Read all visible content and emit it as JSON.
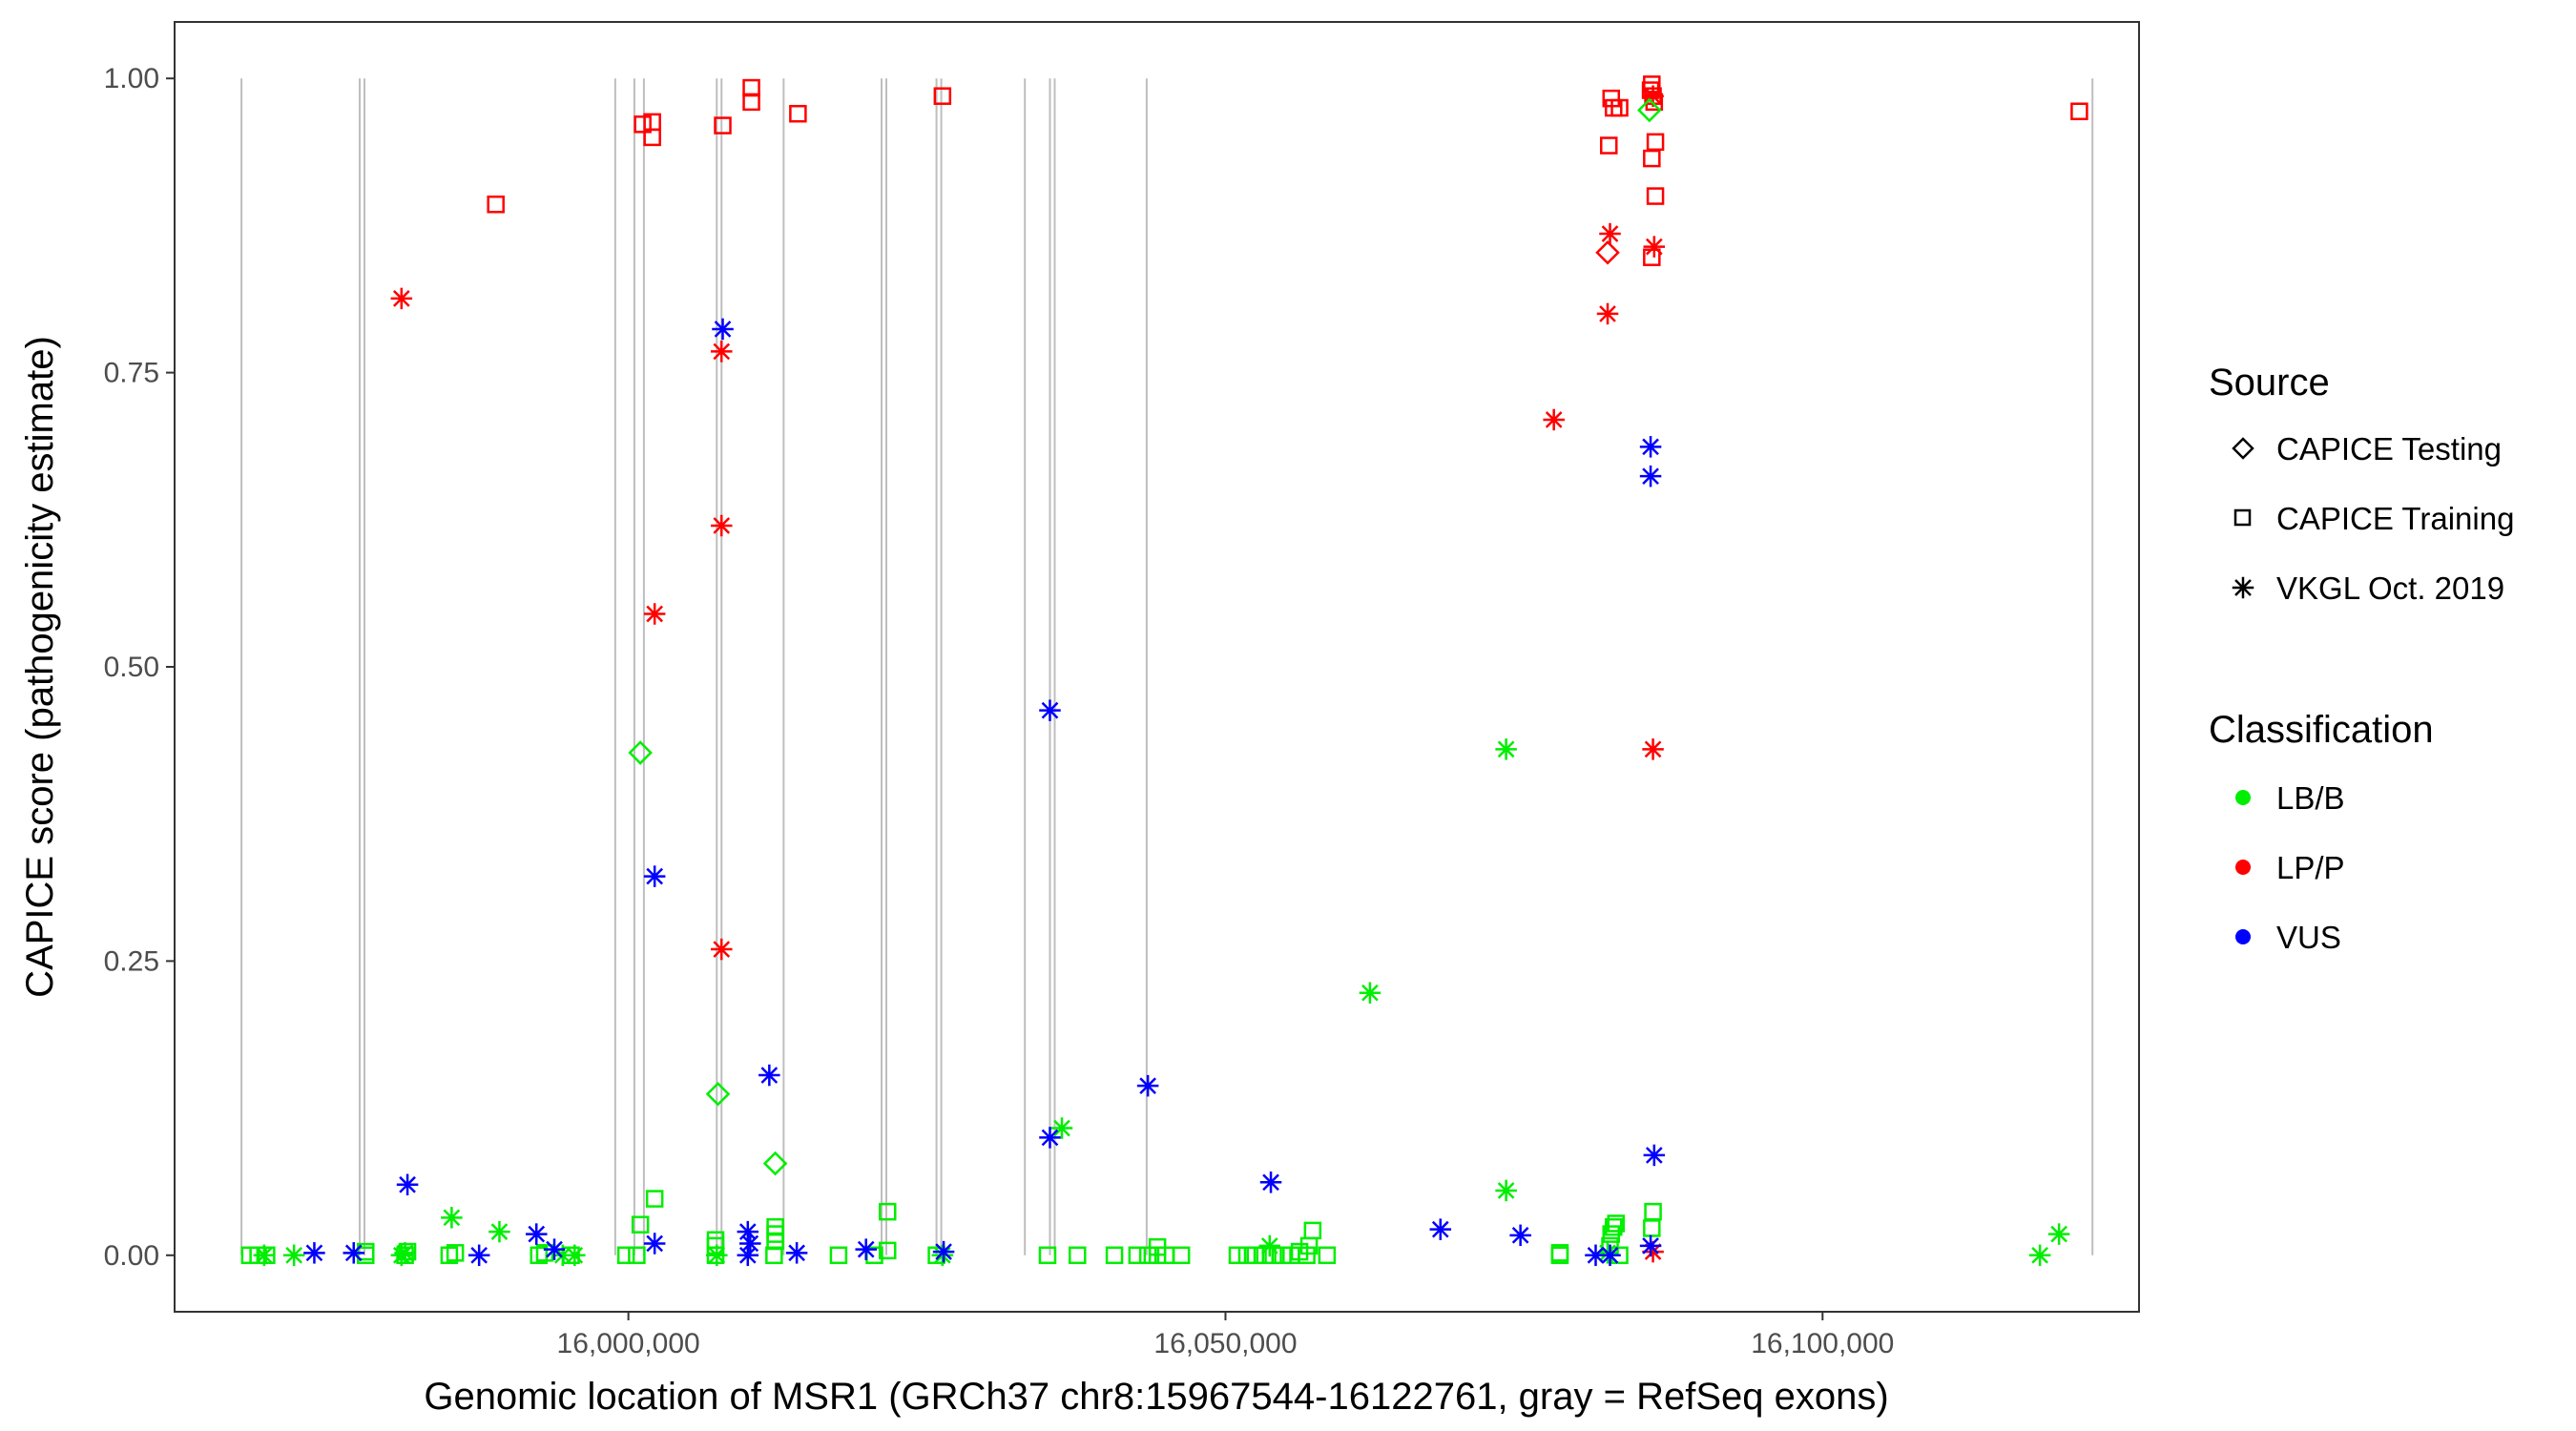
{
  "chart_data": {
    "type": "scatter",
    "xlabel": "Genomic location of MSR1 (GRCh37 chr8:15967544-16122761, gray = RefSeq exons)",
    "ylabel": "CAPICE score (pathogenicity estimate)",
    "xlim": [
      15962000,
      16126500
    ],
    "ylim": [
      -0.048,
      1.048
    ],
    "x_ticks": [
      16000000,
      16050000,
      16100000
    ],
    "x_tick_labels": [
      "16,000,000",
      "16,050,000",
      "16,100,000"
    ],
    "y_ticks": [
      0,
      0.25,
      0.5,
      0.75,
      1.0
    ],
    "y_tick_labels": [
      "0.00",
      "0.25",
      "0.50",
      "0.75",
      "1.00"
    ],
    "grid": false,
    "exon_lines": {
      "color": "#bebebe",
      "y_range": [
        0,
        1.0
      ],
      "positions": [
        15967600,
        15977500,
        15977900,
        15998900,
        16000500,
        16001300,
        16007400,
        16007800,
        16013000,
        16021200,
        16021600,
        16025800,
        16026200,
        16033200,
        16035300,
        16035700,
        16043400,
        16122600
      ]
    },
    "legend": {
      "placement": "right",
      "source_title": "Source",
      "source_entries": [
        {
          "label": "CAPICE Testing",
          "shape": "diamond"
        },
        {
          "label": "CAPICE Training",
          "shape": "square"
        },
        {
          "label": "VKGL Oct. 2019",
          "shape": "asterisk"
        }
      ],
      "class_title": "Classification",
      "class_entries": [
        {
          "label": "LB/B",
          "color": "#00ee00"
        },
        {
          "label": "LP/P",
          "color": "#ff0000"
        },
        {
          "label": "VUS",
          "color": "#0000ff"
        }
      ]
    },
    "series": [
      {
        "name": "CAPICE Testing",
        "shape": "diamond",
        "points": [
          {
            "x": 16001000,
            "y": 0.427,
            "c": "LB/B"
          },
          {
            "x": 16007500,
            "y": 0.137,
            "c": "LB/B"
          },
          {
            "x": 16012300,
            "y": 0.078,
            "c": "LB/B"
          },
          {
            "x": 16082000,
            "y": 0.852,
            "c": "LP/P"
          },
          {
            "x": 16085500,
            "y": 0.973,
            "c": "LB/B"
          }
        ]
      },
      {
        "name": "CAPICE Training",
        "shape": "square",
        "points": [
          {
            "x": 15968300,
            "y": 0.0,
            "c": "LB/B"
          },
          {
            "x": 15969000,
            "y": 0.0,
            "c": "LB/B"
          },
          {
            "x": 15969700,
            "y": 0.0,
            "c": "LB/B"
          },
          {
            "x": 15978000,
            "y": 0.0,
            "c": "LB/B"
          },
          {
            "x": 15978000,
            "y": 0.003,
            "c": "LB/B"
          },
          {
            "x": 15981300,
            "y": 0.0,
            "c": "LB/B"
          },
          {
            "x": 15981500,
            "y": 0.003,
            "c": "LB/B"
          },
          {
            "x": 15985000,
            "y": 0.0,
            "c": "LB/B"
          },
          {
            "x": 15985500,
            "y": 0.002,
            "c": "LB/B"
          },
          {
            "x": 15992500,
            "y": 0.0,
            "c": "LB/B"
          },
          {
            "x": 15993000,
            "y": 0.002,
            "c": "LB/B"
          },
          {
            "x": 15995200,
            "y": 0.0,
            "c": "LB/B"
          },
          {
            "x": 15999800,
            "y": 0.0,
            "c": "LB/B"
          },
          {
            "x": 16000700,
            "y": 0.0,
            "c": "LB/B"
          },
          {
            "x": 16001000,
            "y": 0.026,
            "c": "LB/B"
          },
          {
            "x": 16002200,
            "y": 0.048,
            "c": "LB/B"
          },
          {
            "x": 16007300,
            "y": 0.0,
            "c": "LB/B"
          },
          {
            "x": 16007300,
            "y": 0.008,
            "c": "LB/B"
          },
          {
            "x": 16007300,
            "y": 0.013,
            "c": "LB/B"
          },
          {
            "x": 16012200,
            "y": 0.0,
            "c": "LB/B"
          },
          {
            "x": 16012300,
            "y": 0.012,
            "c": "LB/B"
          },
          {
            "x": 16012300,
            "y": 0.018,
            "c": "LB/B"
          },
          {
            "x": 16012300,
            "y": 0.024,
            "c": "LB/B"
          },
          {
            "x": 16017600,
            "y": 0.0,
            "c": "LB/B"
          },
          {
            "x": 16020600,
            "y": 0.0,
            "c": "LB/B"
          },
          {
            "x": 16021700,
            "y": 0.004,
            "c": "LB/B"
          },
          {
            "x": 16021700,
            "y": 0.037,
            "c": "LB/B"
          },
          {
            "x": 16025800,
            "y": 0.0,
            "c": "LB/B"
          },
          {
            "x": 16035100,
            "y": 0.0,
            "c": "LB/B"
          },
          {
            "x": 16037600,
            "y": 0.0,
            "c": "LB/B"
          },
          {
            "x": 16040700,
            "y": 0.0,
            "c": "LB/B"
          },
          {
            "x": 16042600,
            "y": 0.0,
            "c": "LB/B"
          },
          {
            "x": 16043500,
            "y": 0.0,
            "c": "LB/B"
          },
          {
            "x": 16044300,
            "y": 0.0,
            "c": "LB/B"
          },
          {
            "x": 16044300,
            "y": 0.007,
            "c": "LB/B"
          },
          {
            "x": 16045000,
            "y": 0.0,
            "c": "LB/B"
          },
          {
            "x": 16046300,
            "y": 0.0,
            "c": "LB/B"
          },
          {
            "x": 16051000,
            "y": 0.0,
            "c": "LB/B"
          },
          {
            "x": 16051800,
            "y": 0.0,
            "c": "LB/B"
          },
          {
            "x": 16052500,
            "y": 0.0,
            "c": "LB/B"
          },
          {
            "x": 16053300,
            "y": 0.0,
            "c": "LB/B"
          },
          {
            "x": 16054000,
            "y": 0.0,
            "c": "LB/B"
          },
          {
            "x": 16054800,
            "y": 0.0,
            "c": "LB/B"
          },
          {
            "x": 16055500,
            "y": 0.0,
            "c": "LB/B"
          },
          {
            "x": 16056200,
            "y": 0.003,
            "c": "LB/B"
          },
          {
            "x": 16056800,
            "y": 0.0,
            "c": "LB/B"
          },
          {
            "x": 16057000,
            "y": 0.008,
            "c": "LB/B"
          },
          {
            "x": 16057300,
            "y": 0.021,
            "c": "LB/B"
          },
          {
            "x": 16058500,
            "y": 0.0,
            "c": "LB/B"
          },
          {
            "x": 16078000,
            "y": 0.0,
            "c": "LB/B"
          },
          {
            "x": 16078000,
            "y": 0.002,
            "c": "LB/B"
          },
          {
            "x": 16082200,
            "y": 0.008,
            "c": "LB/B"
          },
          {
            "x": 16082300,
            "y": 0.018,
            "c": "LB/B"
          },
          {
            "x": 16082500,
            "y": 0.024,
            "c": "LB/B"
          },
          {
            "x": 16082700,
            "y": 0.027,
            "c": "LB/B"
          },
          {
            "x": 16083000,
            "y": 0.0,
            "c": "LB/B"
          },
          {
            "x": 16085700,
            "y": 0.023,
            "c": "LB/B"
          },
          {
            "x": 16085800,
            "y": 0.037,
            "c": "LB/B"
          },
          {
            "x": 16007900,
            "y": 0.96,
            "c": "LP/P"
          },
          {
            "x": 16010300,
            "y": 0.992,
            "c": "LP/P"
          },
          {
            "x": 16010300,
            "y": 0.98,
            "c": "LP/P"
          },
          {
            "x": 16014200,
            "y": 0.97,
            "c": "LP/P"
          },
          {
            "x": 16001200,
            "y": 0.961,
            "c": "LP/P"
          },
          {
            "x": 16002000,
            "y": 0.963,
            "c": "LP/P"
          },
          {
            "x": 16002000,
            "y": 0.95,
            "c": "LP/P"
          },
          {
            "x": 15988900,
            "y": 0.893,
            "c": "LP/P"
          },
          {
            "x": 16026300,
            "y": 0.985,
            "c": "LP/P"
          },
          {
            "x": 16082100,
            "y": 0.943,
            "c": "LP/P"
          },
          {
            "x": 16082300,
            "y": 0.983,
            "c": "LP/P"
          },
          {
            "x": 16082500,
            "y": 0.975,
            "c": "LP/P"
          },
          {
            "x": 16083000,
            "y": 0.975,
            "c": "LP/P"
          },
          {
            "x": 16085600,
            "y": 0.99,
            "c": "LP/P"
          },
          {
            "x": 16085700,
            "y": 0.995,
            "c": "LP/P"
          },
          {
            "x": 16085800,
            "y": 0.985,
            "c": "LP/P"
          },
          {
            "x": 16085900,
            "y": 0.98,
            "c": "LP/P"
          },
          {
            "x": 16085700,
            "y": 0.932,
            "c": "LP/P"
          },
          {
            "x": 16086000,
            "y": 0.946,
            "c": "LP/P"
          },
          {
            "x": 16086000,
            "y": 0.9,
            "c": "LP/P"
          },
          {
            "x": 16085700,
            "y": 0.848,
            "c": "LP/P"
          },
          {
            "x": 16121500,
            "y": 0.972,
            "c": "LP/P"
          }
        ]
      },
      {
        "name": "VKGL Oct. 2019",
        "shape": "asterisk",
        "points": [
          {
            "x": 15969500,
            "y": 0.0,
            "c": "LB/B"
          },
          {
            "x": 15972000,
            "y": 0.0,
            "c": "LB/B"
          },
          {
            "x": 15981000,
            "y": 0.0,
            "c": "LB/B"
          },
          {
            "x": 15981300,
            "y": 0.002,
            "c": "LB/B"
          },
          {
            "x": 15985200,
            "y": 0.032,
            "c": "LB/B"
          },
          {
            "x": 15989200,
            "y": 0.02,
            "c": "LB/B"
          },
          {
            "x": 15994500,
            "y": 0.0,
            "c": "LB/B"
          },
          {
            "x": 15995500,
            "y": 0.0,
            "c": "LB/B"
          },
          {
            "x": 16007400,
            "y": 0.0,
            "c": "LB/B"
          },
          {
            "x": 16026300,
            "y": 0.0,
            "c": "LB/B"
          },
          {
            "x": 16036300,
            "y": 0.108,
            "c": "LB/B"
          },
          {
            "x": 16053700,
            "y": 0.008,
            "c": "LB/B"
          },
          {
            "x": 16062100,
            "y": 0.223,
            "c": "LB/B"
          },
          {
            "x": 16073500,
            "y": 0.43,
            "c": "LB/B"
          },
          {
            "x": 16073500,
            "y": 0.055,
            "c": "LB/B"
          },
          {
            "x": 16082000,
            "y": 0.002,
            "c": "LB/B"
          },
          {
            "x": 16118200,
            "y": 0.0,
            "c": "LB/B"
          },
          {
            "x": 16119800,
            "y": 0.018,
            "c": "LB/B"
          },
          {
            "x": 15981000,
            "y": 0.813,
            "c": "LP/P"
          },
          {
            "x": 16002200,
            "y": 0.545,
            "c": "LP/P"
          },
          {
            "x": 16007800,
            "y": 0.768,
            "c": "LP/P"
          },
          {
            "x": 16007800,
            "y": 0.62,
            "c": "LP/P"
          },
          {
            "x": 16007800,
            "y": 0.26,
            "c": "LP/P"
          },
          {
            "x": 16077500,
            "y": 0.71,
            "c": "LP/P"
          },
          {
            "x": 16082000,
            "y": 0.8,
            "c": "LP/P"
          },
          {
            "x": 16082200,
            "y": 0.868,
            "c": "LP/P"
          },
          {
            "x": 16085900,
            "y": 0.857,
            "c": "LP/P"
          },
          {
            "x": 16085800,
            "y": 0.43,
            "c": "LP/P"
          },
          {
            "x": 16085800,
            "y": 0.003,
            "c": "LP/P"
          },
          {
            "x": 16085800,
            "y": 0.985,
            "c": "LP/P"
          },
          {
            "x": 15973700,
            "y": 0.002,
            "c": "VUS"
          },
          {
            "x": 15977000,
            "y": 0.002,
            "c": "VUS"
          },
          {
            "x": 15981500,
            "y": 0.06,
            "c": "VUS"
          },
          {
            "x": 15987500,
            "y": 0.0,
            "c": "VUS"
          },
          {
            "x": 15992300,
            "y": 0.018,
            "c": "VUS"
          },
          {
            "x": 15993800,
            "y": 0.005,
            "c": "VUS"
          },
          {
            "x": 16002200,
            "y": 0.322,
            "c": "VUS"
          },
          {
            "x": 16002200,
            "y": 0.01,
            "c": "VUS"
          },
          {
            "x": 16007900,
            "y": 0.787,
            "c": "VUS"
          },
          {
            "x": 16010000,
            "y": 0.02,
            "c": "VUS"
          },
          {
            "x": 16010200,
            "y": 0.01,
            "c": "VUS"
          },
          {
            "x": 16010000,
            "y": 0.0,
            "c": "VUS"
          },
          {
            "x": 16011800,
            "y": 0.153,
            "c": "VUS"
          },
          {
            "x": 16014100,
            "y": 0.002,
            "c": "VUS"
          },
          {
            "x": 16019900,
            "y": 0.005,
            "c": "VUS"
          },
          {
            "x": 16026400,
            "y": 0.003,
            "c": "VUS"
          },
          {
            "x": 16035300,
            "y": 0.463,
            "c": "VUS"
          },
          {
            "x": 16035300,
            "y": 0.1,
            "c": "VUS"
          },
          {
            "x": 16043500,
            "y": 0.144,
            "c": "VUS"
          },
          {
            "x": 16053800,
            "y": 0.062,
            "c": "VUS"
          },
          {
            "x": 16068000,
            "y": 0.022,
            "c": "VUS"
          },
          {
            "x": 16074700,
            "y": 0.017,
            "c": "VUS"
          },
          {
            "x": 16081000,
            "y": 0.0,
            "c": "VUS"
          },
          {
            "x": 16082200,
            "y": 0.0,
            "c": "VUS"
          },
          {
            "x": 16085600,
            "y": 0.687,
            "c": "VUS"
          },
          {
            "x": 16085600,
            "y": 0.662,
            "c": "VUS"
          },
          {
            "x": 16085900,
            "y": 0.085,
            "c": "VUS"
          },
          {
            "x": 16085600,
            "y": 0.008,
            "c": "VUS"
          }
        ]
      }
    ]
  }
}
